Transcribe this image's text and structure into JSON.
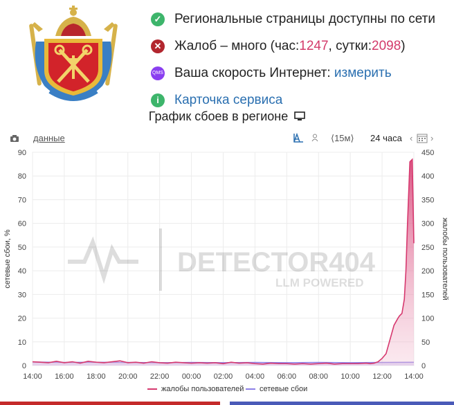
{
  "status": {
    "regional": "Региональные страницы доступны по сети",
    "complaints_prefix": "Жалоб – много (час: ",
    "complaints_hour": "1247",
    "complaints_mid": ", сутки: ",
    "complaints_day": "2098",
    "complaints_suffix": ")",
    "speed_prefix": "Ваша скорость Интернет: ",
    "speed_link": "измерить",
    "service_card": "Карточка сервиса",
    "qms_label": "QMS",
    "icons": [
      "check-icon",
      "cross-icon",
      "qms-icon",
      "info-icon"
    ]
  },
  "chart_title": "График сбоев в регионе",
  "toolbar": {
    "data_link": "данные",
    "interval": "⟨15м⟩",
    "range": "24 часа"
  },
  "watermark": {
    "line1": "DETECTOR404",
    "line2": "LLM POWERED"
  },
  "colors": {
    "complaints": "#d6386e",
    "failures": "#8c7fe6"
  },
  "chart_data": {
    "type": "area",
    "x_ticks": [
      "14:00",
      "16:00",
      "18:00",
      "20:00",
      "22:00",
      "00:00",
      "02:00",
      "04:00",
      "06:00",
      "08:00",
      "10:00",
      "12:00",
      "14:00"
    ],
    "ylabel_left": "сетевые сбои, %",
    "ylabel_right": "жалобы пользователей",
    "yleft_ticks": [
      0,
      10,
      20,
      30,
      40,
      50,
      60,
      70,
      80,
      90
    ],
    "yright_ticks": [
      0,
      50,
      100,
      150,
      200,
      250,
      300,
      350,
      400,
      450
    ],
    "ylim_left": [
      0,
      90
    ],
    "ylim_right": [
      0,
      450
    ],
    "series": [
      {
        "name": "жалобы пользователей",
        "axis": "right",
        "x": [
          0,
          0.5,
          1,
          1.5,
          2,
          2.5,
          3,
          3.5,
          4,
          4.5,
          5,
          5.5,
          6,
          6.5,
          7,
          7.5,
          8,
          8.5,
          9,
          9.5,
          10,
          10.5,
          11,
          11.5,
          12,
          12.5,
          13,
          13.5,
          14,
          14.5,
          15,
          15.5,
          16,
          16.5,
          17,
          17.5,
          18,
          18.5,
          19,
          19.5,
          20,
          20.5,
          21,
          21.25,
          21.5,
          21.75,
          22,
          22.25,
          22.5,
          22.75,
          23,
          23.1,
          23.25,
          23.4,
          23.5,
          23.6,
          23.75,
          23.9,
          24
        ],
        "values": [
          8,
          7,
          6,
          9,
          6,
          8,
          5,
          9,
          7,
          6,
          8,
          10,
          6,
          7,
          5,
          8,
          6,
          5,
          7,
          6,
          5,
          6,
          5,
          6,
          4,
          7,
          5,
          6,
          4,
          3,
          5,
          4,
          4,
          3,
          4,
          3,
          4,
          5,
          3,
          4,
          4,
          4,
          5,
          4,
          5,
          8,
          15,
          25,
          55,
          85,
          100,
          105,
          110,
          140,
          200,
          300,
          430,
          435,
          258
        ]
      },
      {
        "name": "сетевые сбои",
        "axis": "left",
        "x": [
          0,
          2,
          4,
          6,
          8,
          10,
          12,
          14,
          16,
          18,
          20,
          22,
          24
        ],
        "values": [
          1.5,
          1.3,
          1.4,
          1.3,
          1.2,
          1.3,
          1.2,
          1.3,
          1.2,
          1.3,
          1.2,
          1.3,
          1.4
        ]
      }
    ]
  }
}
